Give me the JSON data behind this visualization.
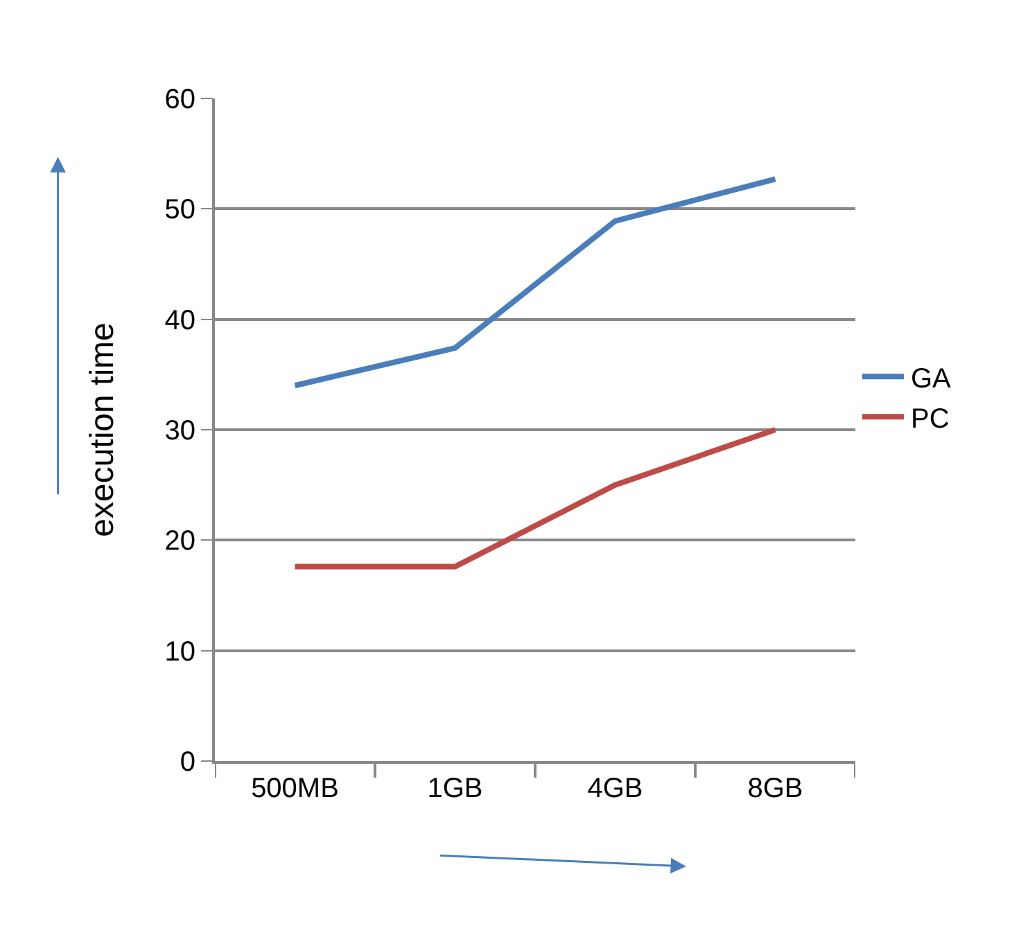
{
  "chart_data": {
    "type": "line",
    "ylabel": "execution time",
    "categories": [
      "500MB",
      "1GB",
      "4GB",
      "8GB"
    ],
    "series": [
      {
        "name": "GA",
        "color": "#4a7ebb",
        "values": [
          34.0,
          37.4,
          48.9,
          52.7
        ]
      },
      {
        "name": "PC",
        "color": "#be4b48",
        "values": [
          17.6,
          17.6,
          25.0,
          30.0
        ]
      }
    ],
    "ylim": [
      0,
      60
    ],
    "yticks": [
      0,
      10,
      20,
      30,
      40,
      50,
      60
    ],
    "grid": "y",
    "legend": "right",
    "marker": "none",
    "line_style": "solid"
  }
}
